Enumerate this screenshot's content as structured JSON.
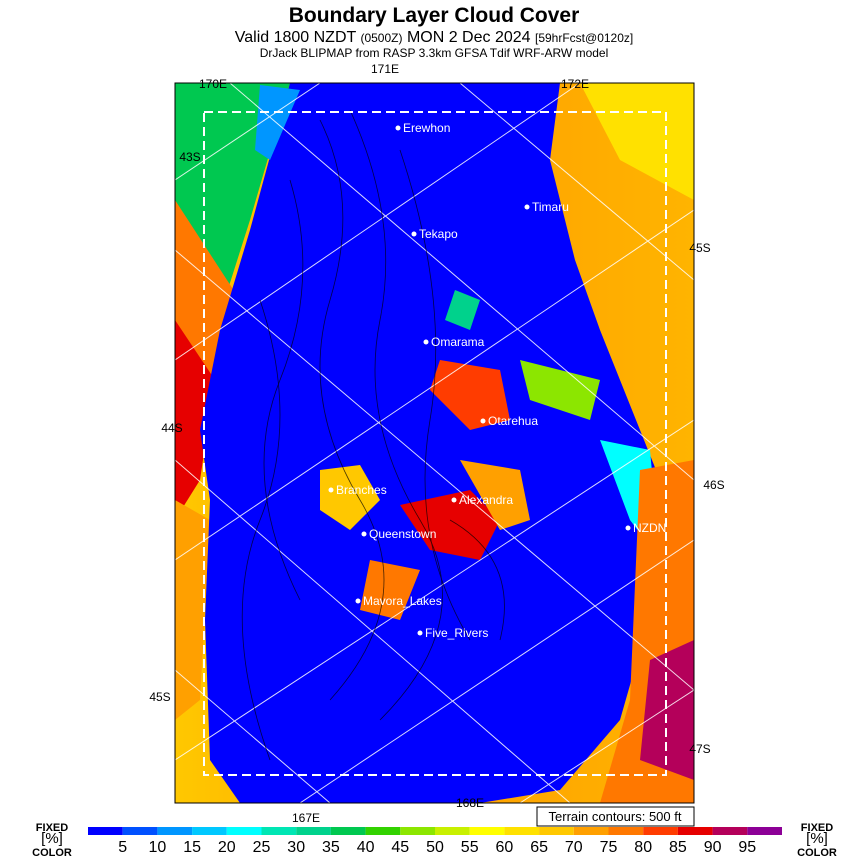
{
  "header": {
    "title": "Boundary Layer Cloud Cover",
    "valid": "Valid 1800 NZDT",
    "zone": "(0500Z)",
    "date": "MON 2 Dec 2024",
    "forecast": "[59hrFcst@0120z]",
    "model": "DrJack BLIPMAP from RASP 3.3km GFSA Tdif WRF-ARW model"
  },
  "grid_labels": [
    "170E",
    "171E",
    "172E",
    "43S",
    "45S",
    "44S",
    "46S",
    "45S",
    "47S",
    "167E",
    "168E"
  ],
  "places": [
    "Erewhon",
    "Timaru",
    "Tekapo",
    "Omarama",
    "Otarehua",
    "Branches",
    "Alexandra",
    "NZDN",
    "Queenstown",
    "Mavora_Lakes",
    "Five_Rivers"
  ],
  "terrain_note": "Terrain contours: 500 ft",
  "legend": {
    "left": [
      "FIXED",
      "[%]",
      "COLOR"
    ],
    "right": [
      "FIXED",
      "[%]",
      "COLOR"
    ],
    "ticks": [
      5,
      10,
      15,
      20,
      25,
      30,
      35,
      40,
      45,
      50,
      55,
      60,
      65,
      70,
      75,
      80,
      85,
      90,
      95
    ],
    "colors": [
      "#0000ff",
      "#0050ff",
      "#0096ff",
      "#00c8ff",
      "#00ffff",
      "#00e6b4",
      "#00d28c",
      "#00c850",
      "#32d200",
      "#8ce600",
      "#c8f000",
      "#ffff00",
      "#ffe100",
      "#ffc800",
      "#ffa000",
      "#ff7800",
      "#ff3c00",
      "#e60000",
      "#b4005a",
      "#8c0096"
    ]
  }
}
